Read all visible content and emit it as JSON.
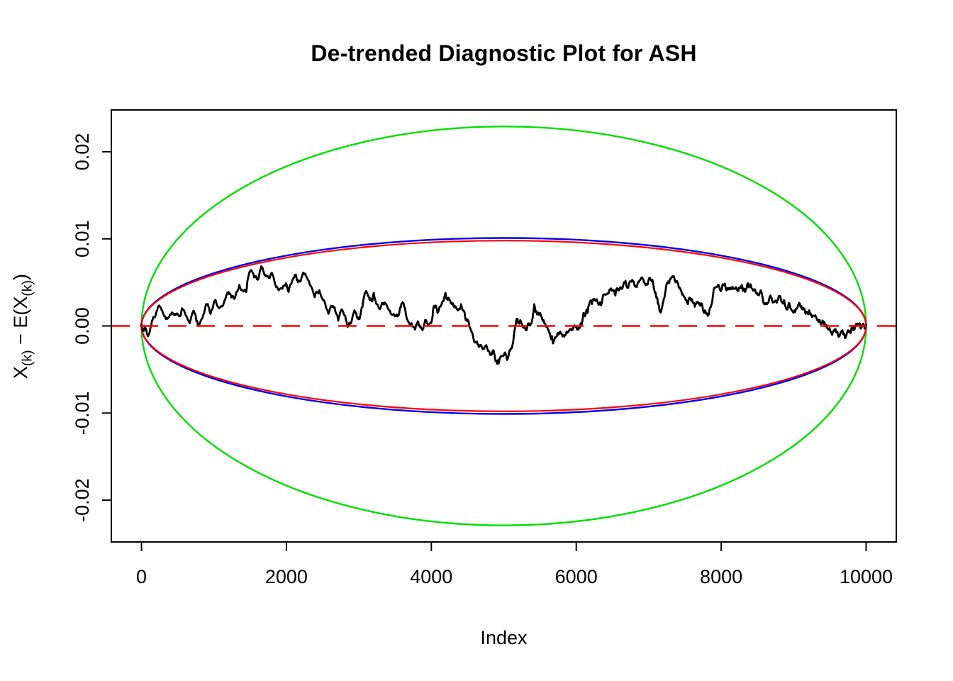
{
  "figure": {
    "title": "De-trended Diagnostic Plot for ASH",
    "xlabel": "Index",
    "ylabel_parts": {
      "p1": "X",
      "s1": "(k)",
      "p2": " − E(X",
      "s2": "(k)",
      "p3": ")"
    },
    "background": "#FFFFFF",
    "axis_color": "#000000"
  },
  "chart_data": {
    "type": "line",
    "title": "De-trended Diagnostic Plot for ASH",
    "xlabel": "Index",
    "ylabel": "X_(k) - E(X_(k))",
    "xlim": [
      -416,
      10416
    ],
    "ylim": [
      -0.0248,
      0.0248
    ],
    "x_ticks": [
      0,
      2000,
      4000,
      6000,
      8000,
      10000
    ],
    "x_tick_labels": [
      "0",
      "2000",
      "4000",
      "6000",
      "8000",
      "10000"
    ],
    "y_ticks": [
      -0.02,
      -0.01,
      0,
      0.01,
      0.02
    ],
    "y_tick_labels": [
      "-0.02",
      "-0.01",
      "0.00",
      "0.01",
      "0.02"
    ],
    "grid": false,
    "legend": "none",
    "series": [
      {
        "name": "outer-envelope-ellipse",
        "type": "ellipse",
        "color": "#00DF00",
        "center": [
          5000,
          0
        ],
        "semi_axes": [
          5000,
          0.0229
        ],
        "linewidth": 2.4
      },
      {
        "name": "simulated-envelope-ellipse",
        "type": "ellipse",
        "color": "#0000EE",
        "center": [
          5000,
          0
        ],
        "semi_axes": [
          5000,
          0.0101
        ],
        "linewidth": 2.4
      },
      {
        "name": "asymptotic-envelope-ellipse",
        "type": "ellipse",
        "color": "#FF0000",
        "center": [
          5000,
          0
        ],
        "semi_axes": [
          5000,
          0.0098
        ],
        "linewidth": 2.2
      },
      {
        "name": "detrended-order-statistic-path",
        "type": "line",
        "color": "#000000",
        "linewidth": 2.8,
        "render_jitter": {
          "levels": 3,
          "amplitude": 0.00055,
          "seed": 7
        },
        "points": [
          [
            0,
            0.0002
          ],
          [
            60,
            -0.0003
          ],
          [
            110,
            -0.0008
          ],
          [
            180,
            0.001
          ],
          [
            255,
            0.0022
          ],
          [
            335,
            0.0008
          ],
          [
            430,
            0.0015
          ],
          [
            520,
            0.0011
          ],
          [
            565,
            0.0019
          ],
          [
            665,
            0.0003
          ],
          [
            725,
            0.0017
          ],
          [
            790,
            0.0
          ],
          [
            890,
            0.0025
          ],
          [
            955,
            0.0014
          ],
          [
            1020,
            0.003
          ],
          [
            1085,
            0.0021
          ],
          [
            1200,
            0.0039
          ],
          [
            1280,
            0.0031
          ],
          [
            1350,
            0.0047
          ],
          [
            1445,
            0.0039
          ],
          [
            1505,
            0.0064
          ],
          [
            1605,
            0.0053
          ],
          [
            1670,
            0.0067
          ],
          [
            1740,
            0.0057
          ],
          [
            1800,
            0.0061
          ],
          [
            1895,
            0.0041
          ],
          [
            1995,
            0.0049
          ],
          [
            2030,
            0.0039
          ],
          [
            2130,
            0.0059
          ],
          [
            2190,
            0.0051
          ],
          [
            2260,
            0.006
          ],
          [
            2390,
            0.0033
          ],
          [
            2455,
            0.0041
          ],
          [
            2580,
            0.0014
          ],
          [
            2650,
            0.0022
          ],
          [
            2715,
            0.0006
          ],
          [
            2780,
            0.0017
          ],
          [
            2845,
            -0.0001
          ],
          [
            2940,
            0.0018
          ],
          [
            3010,
            0.0008
          ],
          [
            3090,
            0.0039
          ],
          [
            3170,
            0.0031
          ],
          [
            3205,
            0.0038
          ],
          [
            3300,
            0.0021
          ],
          [
            3365,
            0.0026
          ],
          [
            3465,
            0.0013
          ],
          [
            3530,
            0.0011
          ],
          [
            3595,
            0.0026
          ],
          [
            3675,
            0.0006
          ],
          [
            3775,
            -0.0004
          ],
          [
            3820,
            0.0004
          ],
          [
            3870,
            -0.0003
          ],
          [
            3920,
            0.0007
          ],
          [
            3990,
            0.0003
          ],
          [
            4035,
            0.0023
          ],
          [
            4085,
            0.0015
          ],
          [
            4195,
            0.0038
          ],
          [
            4230,
            0.003
          ],
          [
            4280,
            0.0026
          ],
          [
            4340,
            0.0022
          ],
          [
            4410,
            0.0025
          ],
          [
            4475,
            0.0007
          ],
          [
            4540,
            -0.0003
          ],
          [
            4605,
            -0.0019
          ],
          [
            4655,
            -0.0024
          ],
          [
            4730,
            -0.0026
          ],
          [
            4800,
            -0.003
          ],
          [
            4850,
            -0.0028
          ],
          [
            4900,
            -0.0041
          ],
          [
            4930,
            -0.0043
          ],
          [
            5000,
            -0.0034
          ],
          [
            5045,
            -0.0039
          ],
          [
            5115,
            -0.0024
          ],
          [
            5165,
            0.0002
          ],
          [
            5195,
            0.0004
          ],
          [
            5260,
            -0.0001
          ],
          [
            5320,
            -0.0003
          ],
          [
            5370,
            0.0002
          ],
          [
            5420,
            0.0025
          ],
          [
            5435,
            0.0017
          ],
          [
            5485,
            0.0013
          ],
          [
            5535,
            0.0006
          ],
          [
            5585,
            -0.0001
          ],
          [
            5650,
            -0.0014
          ],
          [
            5680,
            -0.002
          ],
          [
            5750,
            -0.0008
          ],
          [
            5810,
            -0.0012
          ],
          [
            5875,
            -0.0008
          ],
          [
            5940,
            -0.0005
          ],
          [
            5990,
            -0.0001
          ],
          [
            6020,
            -0.0004
          ],
          [
            6070,
            0.0003
          ],
          [
            6100,
            0.0015
          ],
          [
            6140,
            0.0018
          ],
          [
            6165,
            0.0022
          ],
          [
            6215,
            0.0025
          ],
          [
            6265,
            0.0029
          ],
          [
            6315,
            0.0025
          ],
          [
            6365,
            0.0033
          ],
          [
            6430,
            0.0037
          ],
          [
            6480,
            0.0043
          ],
          [
            6540,
            0.0035
          ],
          [
            6590,
            0.0041
          ],
          [
            6655,
            0.0049
          ],
          [
            6705,
            0.0044
          ],
          [
            6755,
            0.0051
          ],
          [
            6820,
            0.0045
          ],
          [
            6885,
            0.0053
          ],
          [
            6950,
            0.0048
          ],
          [
            7020,
            0.0055
          ],
          [
            7080,
            0.004
          ],
          [
            7120,
            0.0031
          ],
          [
            7150,
            0.0017
          ],
          [
            7200,
            0.0027
          ],
          [
            7250,
            0.0049
          ],
          [
            7315,
            0.0056
          ],
          [
            7365,
            0.0051
          ],
          [
            7415,
            0.0044
          ],
          [
            7460,
            0.0036
          ],
          [
            7540,
            0.0025
          ],
          [
            7585,
            0.0029
          ],
          [
            7635,
            0.0022
          ],
          [
            7700,
            0.0026
          ],
          [
            7765,
            0.0015
          ],
          [
            7830,
            0.0013
          ],
          [
            7895,
            0.0041
          ],
          [
            7945,
            0.0045
          ],
          [
            7995,
            0.004
          ],
          [
            8045,
            0.0048
          ],
          [
            8090,
            0.0042
          ],
          [
            8155,
            0.0045
          ],
          [
            8220,
            0.0041
          ],
          [
            8285,
            0.0047
          ],
          [
            8320,
            0.0042
          ],
          [
            8370,
            0.0049
          ],
          [
            8415,
            0.0044
          ],
          [
            8480,
            0.0038
          ],
          [
            8545,
            0.0041
          ],
          [
            8615,
            0.0025
          ],
          [
            8680,
            0.0035
          ],
          [
            8745,
            0.0029
          ],
          [
            8790,
            0.0033
          ],
          [
            8840,
            0.0027
          ],
          [
            8890,
            0.0022
          ],
          [
            8940,
            0.0026
          ],
          [
            9005,
            0.0017
          ],
          [
            9070,
            0.0025
          ],
          [
            9120,
            0.0019
          ],
          [
            9165,
            0.0014
          ],
          [
            9215,
            0.0018
          ],
          [
            9265,
            0.0011
          ],
          [
            9330,
            0.0007
          ],
          [
            9375,
            0.0002
          ],
          [
            9425,
            0.0004
          ],
          [
            9470,
            -0.0003
          ],
          [
            9520,
            -0.0008
          ],
          [
            9565,
            -0.0004
          ],
          [
            9615,
            -0.0011
          ],
          [
            9660,
            -0.0006
          ],
          [
            9710,
            -0.0014
          ],
          [
            9760,
            -0.0007
          ],
          [
            9810,
            0.0
          ],
          [
            9840,
            -0.0004
          ],
          [
            9890,
            0.0002
          ],
          [
            9925,
            -0.0003
          ],
          [
            9975,
            0.0
          ],
          [
            10000,
            0.0001
          ]
        ]
      },
      {
        "name": "zero-reference-line",
        "type": "hline",
        "color": "#FF0000",
        "y": 0,
        "style": "dashed",
        "linewidth": 2.6
      }
    ]
  }
}
